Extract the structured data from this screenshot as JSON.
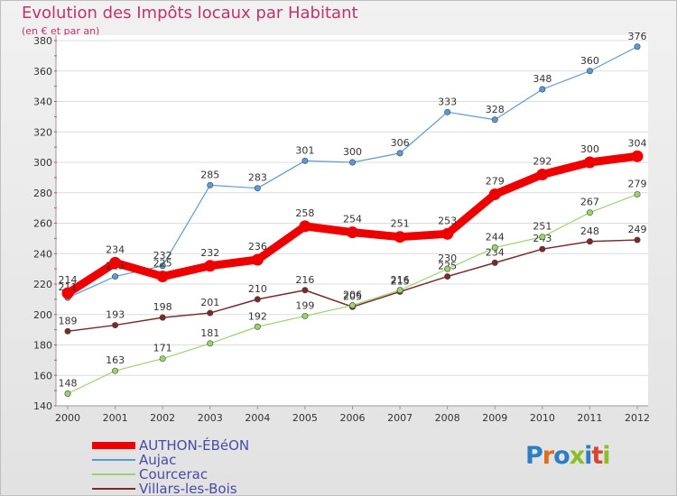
{
  "title": "Evolution des Impôts locaux par Habitant",
  "subtitle": "(en € et par an)",
  "logo": {
    "text": "Proxiti",
    "letter_colors": [
      "#2e7fc1",
      "#e06c19",
      "#2e7fc1",
      "#8cbf26",
      "#2e7fc1",
      "#d64530",
      "#8cbf26"
    ]
  },
  "chart_data": {
    "type": "line",
    "title": "Evolution des Impôts locaux par Habitant",
    "subtitle": "(en € et par an)",
    "xlabel": "",
    "ylabel": "",
    "categories": [
      "2000",
      "2001",
      "2002",
      "2003",
      "2004",
      "2005",
      "2006",
      "2007",
      "2008",
      "2009",
      "2010",
      "2011",
      "2012"
    ],
    "ylim": [
      140,
      380
    ],
    "yticks": [
      140,
      160,
      180,
      200,
      220,
      240,
      260,
      280,
      300,
      320,
      340,
      360,
      380
    ],
    "grid": "horizontal",
    "legend_position": "bottom-left",
    "series": [
      {
        "name": "AUTHON-ÉBéON",
        "color": "#ee0000",
        "values": [
          214,
          234,
          225,
          232,
          236,
          258,
          254,
          251,
          253,
          279,
          292,
          300,
          304
        ]
      },
      {
        "name": "Aujac",
        "color": "#5b9bd5",
        "values": [
          211,
          225,
          232,
          285,
          283,
          301,
          300,
          306,
          333,
          328,
          348,
          360,
          376
        ]
      },
      {
        "name": "Courcerac",
        "color": "#9bd36c",
        "values": [
          148,
          163,
          171,
          181,
          192,
          199,
          206,
          216,
          230,
          244,
          251,
          267,
          279
        ]
      },
      {
        "name": "Villars-les-Bois",
        "color": "#7a2a2a",
        "values": [
          189,
          193,
          198,
          201,
          210,
          216,
          205,
          215,
          225,
          234,
          243,
          248,
          249
        ]
      }
    ]
  }
}
